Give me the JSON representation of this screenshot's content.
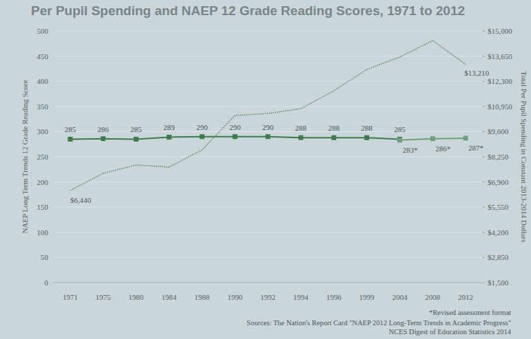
{
  "chart_data": {
    "type": "line",
    "title": "Per Pupil Spending and NAEP 12 Grade Reading Scores, 1971 to 2012",
    "y_label": "NAEP Long Term Trends 12 Grade Reading Score",
    "y2_label": "Total Per Pupil Spending in Constant 2013-2014 Dollars",
    "categories": [
      "1971",
      "1975",
      "1980",
      "1984",
      "1988",
      "1990",
      "1992",
      "1994",
      "1996",
      "1999",
      "2004",
      "2008",
      "2012"
    ],
    "series": [
      {
        "color": "#3d7a4c",
        "marker": "square",
        "line_style": "solid",
        "values": [
          285,
          286,
          285,
          289,
          290,
          290,
          290,
          288,
          288,
          288,
          285,
          null,
          null
        ]
      },
      {
        "color": "#6f9f7d",
        "marker": "square",
        "line_style": "solid",
        "values": [
          null,
          null,
          null,
          null,
          null,
          null,
          null,
          null,
          null,
          null,
          283,
          286,
          287
        ],
        "value_labels": [
          null,
          null,
          null,
          null,
          null,
          null,
          null,
          null,
          null,
          null,
          "283*",
          "286*",
          "287*"
        ]
      },
      {
        "color": "#5e8f6c",
        "marker": "none",
        "line_style": "dotted",
        "axis": "y2",
        "values": [
          6440,
          7365,
          7807,
          7697,
          8619,
          10463,
          10574,
          10832,
          11791,
          12934,
          13598,
          14484,
          13210
        ],
        "value_labels": [
          "$6,440",
          null,
          null,
          null,
          null,
          null,
          null,
          null,
          null,
          null,
          null,
          null,
          "$13,210"
        ]
      }
    ],
    "ylim": [
      0,
      500
    ],
    "yticks": [
      0,
      50,
      100,
      150,
      200,
      250,
      300,
      350,
      400,
      450,
      500
    ],
    "y2lim": [
      1500,
      15000
    ],
    "y2ticks": [
      {
        "value": 1500,
        "label": "$1,500"
      },
      {
        "value": 2850,
        "label": "$2,850"
      },
      {
        "value": 4200,
        "label": "$4,200"
      },
      {
        "value": 5550,
        "label": "$5,550"
      },
      {
        "value": 6900,
        "label": "$6,900"
      },
      {
        "value": 8250,
        "label": "$8,250"
      },
      {
        "value": 9600,
        "label": "$9,600"
      },
      {
        "value": 10950,
        "label": "$10,950"
      },
      {
        "value": 12300,
        "label": "$12,300"
      },
      {
        "value": 13650,
        "label": "$13,650"
      },
      {
        "value": 15000,
        "label": "$15,000"
      }
    ],
    "grid": true,
    "data_labels": true,
    "annotations": [
      "*Revised assessment format"
    ],
    "sources": [
      "Sources: The Nation's Report Card \"NAEP 2012 Long-Term Trends in Academic Progress\"",
      "NCES Digest of Education Statistics 2014"
    ]
  }
}
